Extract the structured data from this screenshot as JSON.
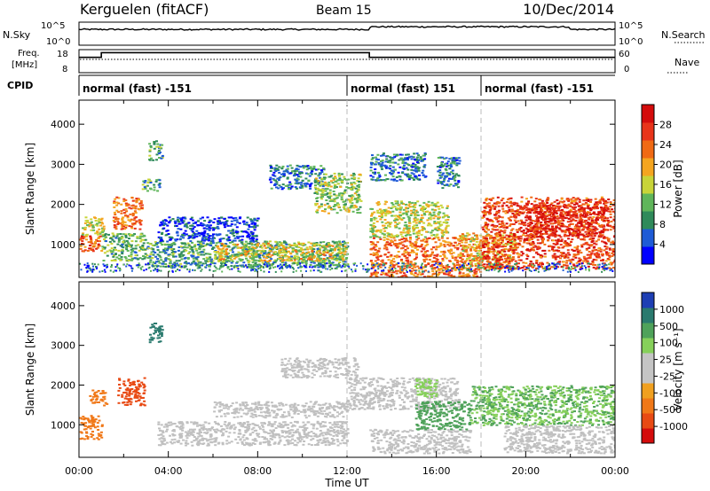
{
  "header": {
    "station": "Kerguelen (fitACF)",
    "beam": "Beam 15",
    "date": "10/Dec/2014"
  },
  "panels": {
    "nsky_label": "N.Sky",
    "nsearch_label": "N.Search",
    "freq_label_1": "Freq.",
    "freq_label_2": "[MHz]",
    "nave_label": "Nave",
    "cpid_label": "CPID",
    "sky_ticks": [
      "10^5",
      "10^0"
    ],
    "freq_ticks": [
      "18",
      "8"
    ],
    "nave_ticks": [
      "60",
      "0"
    ]
  },
  "cpid_segments": [
    {
      "label": "normal (fast) -151",
      "start_hour": 0,
      "end_hour": 12
    },
    {
      "label": "normal (fast) 151",
      "start_hour": 12,
      "end_hour": 18
    },
    {
      "label": "normal (fast) -151",
      "start_hour": 18,
      "end_hour": 24
    }
  ],
  "axes": {
    "y_label": "Slant Range [km]",
    "x_label": "Time UT",
    "x_ticks": [
      "00:00",
      "04:00",
      "08:00",
      "12:00",
      "16:00",
      "20:00",
      "00:00"
    ],
    "y_ticks": [
      "1000",
      "2000",
      "3000",
      "4000"
    ]
  },
  "colorbars": {
    "power": {
      "label": "Power [dB]",
      "ticks": [
        "4",
        "8",
        "12",
        "16",
        "20",
        "24",
        "28"
      ],
      "colors": [
        "#0000ff",
        "#1e5bd6",
        "#2f8a5a",
        "#5fb55a",
        "#c8d438",
        "#f4a520",
        "#f06a14",
        "#e8341a",
        "#d40c0c"
      ]
    },
    "velocity": {
      "label": "Velocity [m s⁻¹]",
      "ticks": [
        "1000",
        "500",
        "100",
        "25",
        "-25",
        "-100",
        "-500",
        "-1000"
      ],
      "colors": [
        "#1e3fb4",
        "#2a7a6e",
        "#4fa25a",
        "#86d05a",
        "#c4c4c4",
        "#c4c4c4",
        "#f0a020",
        "#f07818",
        "#e84a14",
        "#d40c0c"
      ]
    }
  },
  "chart_data": {
    "type": "heatmap",
    "x_range_hours": [
      0,
      24
    ],
    "y_range_km": [
      180,
      4600
    ],
    "ground_scatter_color": "#c0c0c0",
    "power_blobs": [
      {
        "t0": 0.0,
        "t1": 1.0,
        "r0": 850,
        "r1": 1250,
        "level": 0.8
      },
      {
        "t0": 0.1,
        "t1": 1.1,
        "r0": 1250,
        "r1": 1700,
        "level": 0.5
      },
      {
        "t0": 1.0,
        "t1": 3.0,
        "r0": 600,
        "r1": 1300,
        "level": 0.35
      },
      {
        "t0": 1.5,
        "t1": 2.8,
        "r0": 1400,
        "r1": 2200,
        "level": 0.75
      },
      {
        "t0": 2.8,
        "t1": 3.6,
        "r0": 2350,
        "r1": 2650,
        "level": 0.3
      },
      {
        "t0": 3.1,
        "t1": 3.7,
        "r0": 3100,
        "r1": 3600,
        "level": 0.3
      },
      {
        "t0": 3.0,
        "t1": 12.0,
        "r0": 450,
        "r1": 1100,
        "level": 0.3
      },
      {
        "t0": 6.0,
        "t1": 12.0,
        "r0": 600,
        "r1": 1050,
        "level": 0.55
      },
      {
        "t0": 3.5,
        "t1": 8.0,
        "r0": 1100,
        "r1": 1700,
        "level": 0.1
      },
      {
        "t0": 8.5,
        "t1": 11.0,
        "r0": 2400,
        "r1": 3000,
        "level": 0.2
      },
      {
        "t0": 10.5,
        "t1": 12.6,
        "r0": 1800,
        "r1": 2800,
        "level": 0.45
      },
      {
        "t0": 13.0,
        "t1": 18.0,
        "r0": 200,
        "r1": 1200,
        "level": 0.75
      },
      {
        "t0": 13.0,
        "t1": 16.5,
        "r0": 1200,
        "r1": 2100,
        "level": 0.5
      },
      {
        "t0": 13.0,
        "t1": 15.5,
        "r0": 2600,
        "r1": 3300,
        "level": 0.2
      },
      {
        "t0": 16.0,
        "t1": 17.0,
        "r0": 2400,
        "r1": 3200,
        "level": 0.2
      },
      {
        "t0": 17.0,
        "t1": 19.5,
        "r0": 400,
        "r1": 1300,
        "level": 0.6
      },
      {
        "t0": 18.0,
        "t1": 24.0,
        "r0": 400,
        "r1": 2200,
        "level": 0.85
      },
      {
        "t0": 20.0,
        "t1": 23.5,
        "r0": 1200,
        "r1": 2000,
        "level": 0.95
      }
    ],
    "velocity_blobs": [
      {
        "t0": 0.0,
        "t1": 1.0,
        "r0": 650,
        "r1": 1250,
        "vel": -300
      },
      {
        "t0": 0.4,
        "t1": 1.2,
        "r0": 1500,
        "r1": 1900,
        "vel": -300
      },
      {
        "t0": 1.7,
        "t1": 2.9,
        "r0": 1500,
        "r1": 2200,
        "vel": -700
      },
      {
        "t0": 3.1,
        "t1": 3.7,
        "r0": 3100,
        "r1": 3600,
        "vel": 600
      },
      {
        "t0": 3.5,
        "t1": 12.0,
        "r0": 500,
        "r1": 1100,
        "vel": 0
      },
      {
        "t0": 6.0,
        "t1": 12.0,
        "r0": 1200,
        "r1": 1600,
        "vel": 0
      },
      {
        "t0": 9.0,
        "t1": 12.5,
        "r0": 2200,
        "r1": 2700,
        "vel": 0
      },
      {
        "t0": 12.0,
        "t1": 17.0,
        "r0": 1400,
        "r1": 2200,
        "vel": 0
      },
      {
        "t0": 13.0,
        "t1": 17.5,
        "r0": 300,
        "r1": 900,
        "vel": 0
      },
      {
        "t0": 15.0,
        "t1": 17.5,
        "r0": 900,
        "r1": 1600,
        "vel": 300
      },
      {
        "t0": 15.0,
        "t1": 16.0,
        "r0": 1700,
        "r1": 2200,
        "vel": 100
      },
      {
        "t0": 17.5,
        "t1": 24.0,
        "r0": 1000,
        "r1": 2000,
        "vel": 150
      },
      {
        "t0": 19.0,
        "t1": 24.0,
        "r0": 300,
        "r1": 1000,
        "vel": 0
      }
    ],
    "nave": [
      {
        "start_hour": 0,
        "end_hour": 1.0,
        "value": 40
      },
      {
        "start_hour": 1.0,
        "end_hour": 13.0,
        "value": 52
      },
      {
        "start_hour": 13.0,
        "end_hour": 24,
        "value": 40
      }
    ]
  }
}
